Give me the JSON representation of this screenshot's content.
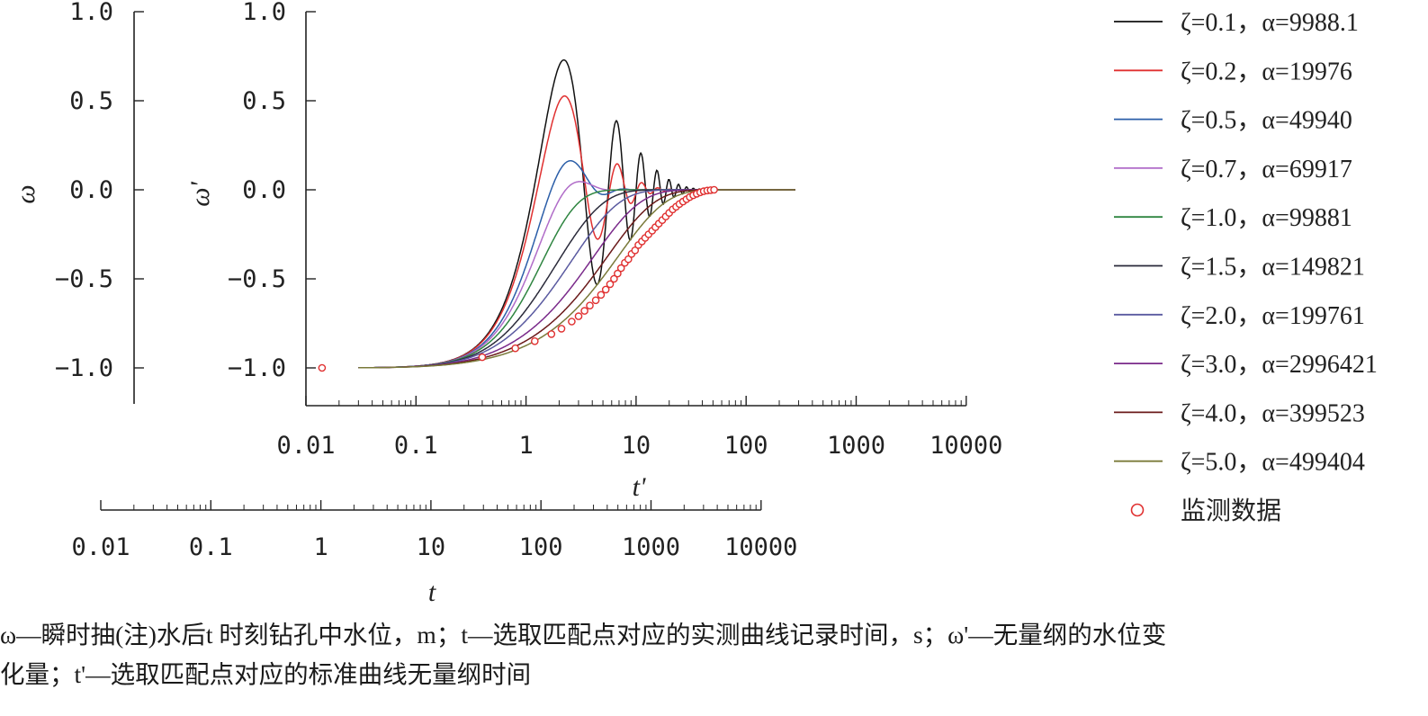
{
  "chart_data": {
    "type": "line",
    "y_axis_left": {
      "label": "ω",
      "ticks": [
        "1.0",
        "0.5",
        "0.0",
        "−0.5",
        "−1.0"
      ],
      "range": [
        -1.2,
        1.0
      ]
    },
    "y_axis_inner": {
      "label": "ω'",
      "ticks": [
        "1.0",
        "0.5",
        "0.0",
        "−0.5",
        "−1.0"
      ],
      "range": [
        -1.2,
        1.0
      ]
    },
    "x_axis_inner": {
      "label": "t'",
      "scale": "log",
      "ticks": [
        "0.01",
        "0.1",
        "1",
        "10",
        "100",
        "1000",
        "10000"
      ],
      "range": [
        0.01,
        10000
      ]
    },
    "x_axis_outer": {
      "label": "t",
      "scale": "log",
      "ticks": [
        "0.01",
        "0.1",
        "1",
        "10",
        "100",
        "1000",
        "10000"
      ],
      "range": [
        0.01,
        10000
      ]
    },
    "series": [
      {
        "name": "ζ=0.1，α=9988.1",
        "zeta": 0.1,
        "color": "#111111"
      },
      {
        "name": "ζ=0.2，α=19976",
        "zeta": 0.2,
        "color": "#e03030"
      },
      {
        "name": "ζ=0.5，α=49940",
        "zeta": 0.5,
        "color": "#2b5ea8"
      },
      {
        "name": "ζ=0.7，α=69917",
        "zeta": 0.7,
        "color": "#b06cc8"
      },
      {
        "name": "ζ=1.0，α=99881",
        "zeta": 1.0,
        "color": "#2e8540"
      },
      {
        "name": "ζ=1.5，α=149821",
        "zeta": 1.5,
        "color": "#2a2a3a"
      },
      {
        "name": "ζ=2.0，α=199761",
        "zeta": 2.0,
        "color": "#5a5aa0"
      },
      {
        "name": "ζ=3.0，α=2996421",
        "zeta": 3.0,
        "color": "#7a2a8a"
      },
      {
        "name": "ζ=4.0，α=399523",
        "zeta": 4.0,
        "color": "#6a1a1a"
      },
      {
        "name": "ζ=5.0，α=499404",
        "zeta": 5.0,
        "color": "#7a7a3a"
      }
    ],
    "monitoring": {
      "name": "监测数据",
      "color": "#e03030",
      "points": [
        [
          0.014,
          -1.0
        ],
        [
          0.4,
          -0.94
        ],
        [
          0.8,
          -0.89
        ],
        [
          1.2,
          -0.85
        ],
        [
          1.7,
          -0.81
        ],
        [
          2.1,
          -0.78
        ],
        [
          2.6,
          -0.74
        ],
        [
          3.0,
          -0.71
        ],
        [
          3.4,
          -0.68
        ],
        [
          3.8,
          -0.65
        ],
        [
          4.3,
          -0.62
        ],
        [
          4.8,
          -0.59
        ],
        [
          5.3,
          -0.56
        ],
        [
          5.8,
          -0.53
        ],
        [
          6.3,
          -0.5
        ],
        [
          6.8,
          -0.47
        ],
        [
          7.3,
          -0.44
        ],
        [
          7.9,
          -0.41
        ],
        [
          8.5,
          -0.39
        ],
        [
          9.1,
          -0.36
        ],
        [
          9.8,
          -0.34
        ],
        [
          10.5,
          -0.31
        ],
        [
          11.3,
          -0.29
        ],
        [
          12.1,
          -0.27
        ],
        [
          13.0,
          -0.25
        ],
        [
          14.0,
          -0.23
        ],
        [
          15.0,
          -0.21
        ],
        [
          16.1,
          -0.19
        ],
        [
          17.3,
          -0.17
        ],
        [
          18.6,
          -0.15
        ],
        [
          20.0,
          -0.13
        ],
        [
          21.5,
          -0.11
        ],
        [
          23.1,
          -0.095
        ],
        [
          24.8,
          -0.08
        ],
        [
          26.7,
          -0.066
        ],
        [
          28.7,
          -0.053
        ],
        [
          30.8,
          -0.041
        ],
        [
          33.1,
          -0.031
        ],
        [
          35.6,
          -0.022
        ],
        [
          38.3,
          -0.014
        ],
        [
          41.2,
          -0.008
        ],
        [
          44.3,
          -0.004
        ],
        [
          47.6,
          -0.002
        ],
        [
          51.2,
          0.0
        ]
      ]
    }
  },
  "caption": {
    "line1": "ω—瞬时抽(注)水后t  时刻钻孔中水位，m；t—选取匹配点对应的实测曲线记录时间，s；ω'—无量纲的水位变",
    "line2": "化量；t'—选取匹配点对应的标准曲线无量纲时间"
  }
}
